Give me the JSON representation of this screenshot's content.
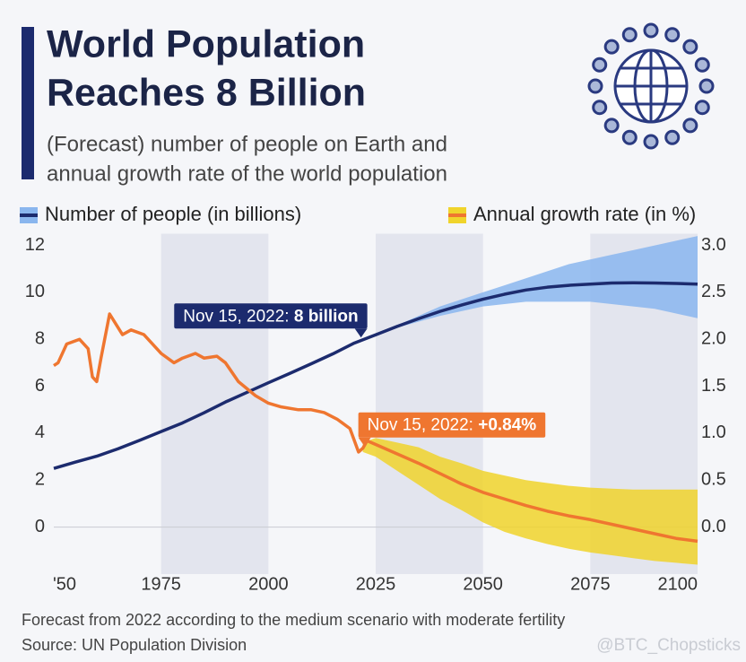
{
  "chart_data": {
    "type": "line",
    "title": [
      "World Population",
      "Reaches 8 Billion"
    ],
    "subtitle": [
      "(Forecast) number of people on Earth and",
      "annual growth rate of the world population"
    ],
    "xlim": [
      1950,
      2100
    ],
    "xticks": [
      {
        "value": 1950,
        "label": "'50"
      },
      1975,
      2000,
      2025,
      2050,
      2075,
      2100
    ],
    "ylim": [
      -2,
      12.5
    ],
    "yticks": [
      0,
      2,
      4,
      6,
      8,
      10,
      12
    ],
    "y2lim": [
      -0.5,
      3.125
    ],
    "y2ticks": [
      {
        "value": 0,
        "label": "0.0"
      },
      0.5,
      {
        "value": 1,
        "label": "1.0"
      },
      1.5,
      {
        "value": 2,
        "label": "2.0"
      },
      2.5,
      {
        "value": 3,
        "label": "3.0"
      }
    ],
    "grid": false,
    "series": [
      {
        "name": "Number of people (in billions)",
        "color": "#1c2b6e",
        "band_color": "#8ab6ee",
        "axis": "y",
        "x": [
          1950,
          1955,
          1960,
          1965,
          1970,
          1975,
          1980,
          1985,
          1990,
          1995,
          2000,
          2005,
          2010,
          2015,
          2020,
          2025,
          2030,
          2035,
          2040,
          2045,
          2050,
          2055,
          2060,
          2065,
          2070,
          2075,
          2080,
          2085,
          2090,
          2095,
          2100
        ],
        "values": [
          2.5,
          2.77,
          3.02,
          3.34,
          3.7,
          4.07,
          4.44,
          4.87,
          5.33,
          5.74,
          6.15,
          6.55,
          6.96,
          7.38,
          7.84,
          8.19,
          8.55,
          8.88,
          9.19,
          9.46,
          9.71,
          9.92,
          10.1,
          10.22,
          10.3,
          10.35,
          10.4,
          10.41,
          10.4,
          10.38,
          10.35
        ],
        "band": {
          "x": [
            2025,
            2030,
            2035,
            2040,
            2045,
            2050,
            2055,
            2060,
            2065,
            2070,
            2075,
            2080,
            2085,
            2090,
            2095,
            2100
          ],
          "lower": [
            8.19,
            8.5,
            8.75,
            9.0,
            9.2,
            9.4,
            9.5,
            9.6,
            9.6,
            9.6,
            9.6,
            9.5,
            9.4,
            9.3,
            9.1,
            8.9
          ],
          "upper": [
            8.2,
            8.6,
            9.0,
            9.4,
            9.7,
            10.0,
            10.3,
            10.6,
            10.9,
            11.2,
            11.4,
            11.6,
            11.8,
            12.0,
            12.2,
            12.4
          ]
        }
      },
      {
        "name": "Annual growth rate (in %)",
        "color": "#ef7630",
        "band_color": "#f0d42c",
        "axis": "y2",
        "x": [
          1950,
          1951,
          1953,
          1956,
          1958,
          1959,
          1960,
          1961,
          1963,
          1966,
          1968,
          1971,
          1975,
          1978,
          1980,
          1983,
          1985,
          1988,
          1990,
          1993,
          1997,
          2000,
          2003,
          2007,
          2010,
          2013,
          2016,
          2019,
          2021,
          2022,
          2023,
          2025,
          2030,
          2035,
          2040,
          2045,
          2050,
          2055,
          2060,
          2065,
          2070,
          2075,
          2080,
          2085,
          2090,
          2095,
          2100
        ],
        "values": [
          1.72,
          1.75,
          1.95,
          2.0,
          1.9,
          1.6,
          1.55,
          1.8,
          2.27,
          2.05,
          2.1,
          2.05,
          1.85,
          1.75,
          1.8,
          1.85,
          1.8,
          1.82,
          1.75,
          1.55,
          1.4,
          1.32,
          1.28,
          1.25,
          1.25,
          1.22,
          1.15,
          1.05,
          0.8,
          0.84,
          0.92,
          0.88,
          0.78,
          0.68,
          0.57,
          0.46,
          0.37,
          0.3,
          0.23,
          0.17,
          0.12,
          0.08,
          0.03,
          -0.02,
          -0.07,
          -0.12,
          -0.15
        ],
        "band": {
          "x": [
            2022,
            2025,
            2030,
            2035,
            2040,
            2045,
            2050,
            2055,
            2060,
            2065,
            2070,
            2075,
            2080,
            2085,
            2090,
            2095,
            2100
          ],
          "lower": [
            0.8,
            0.75,
            0.6,
            0.45,
            0.3,
            0.18,
            0.05,
            -0.05,
            -0.12,
            -0.18,
            -0.23,
            -0.27,
            -0.3,
            -0.33,
            -0.36,
            -0.38,
            -0.4
          ],
          "upper": [
            0.9,
            0.95,
            0.9,
            0.85,
            0.75,
            0.68,
            0.6,
            0.55,
            0.5,
            0.47,
            0.44,
            0.42,
            0.41,
            0.4,
            0.4,
            0.4,
            0.4
          ]
        }
      }
    ],
    "annotations": [
      {
        "text": "Nov 15, 2022: ",
        "value_label": "8 billion",
        "x": 2022,
        "y": 8,
        "axis": "y"
      },
      {
        "text": "Nov 15, 2022: ",
        "value_label": "+0.84%",
        "x": 2022,
        "y": 0.84,
        "axis": "y2"
      }
    ],
    "footer": [
      "Forecast from 2022 according to the medium scenario with moderate fertility",
      "Source: UN Population Division"
    ],
    "watermark": "@BTC_Chopsticks"
  }
}
